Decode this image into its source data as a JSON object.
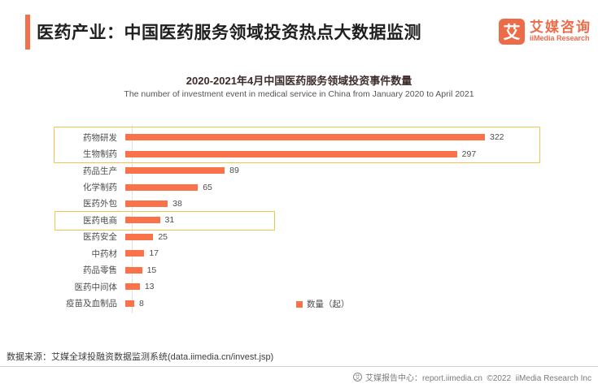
{
  "header": {
    "title": "医药产业：中国医药服务领域投资热点大数据监测",
    "logo": {
      "mark": "艾",
      "name_cn": "艾媒咨询",
      "name_en": "iiMedia Research"
    }
  },
  "chart": {
    "title": "2020-2021年4月中国医药服务领域投资事件数量",
    "subtitle": "The number of investment event in medical service in China from January 2020 to April 2021",
    "legend_label": "数量（起）"
  },
  "chart_data": {
    "type": "bar",
    "orientation": "horizontal",
    "title": "2020-2021年4月中国医药服务领域投资事件数量",
    "subtitle": "The number of investment event in medical service in China from January 2020 to April 2021",
    "categories": [
      "药物研发",
      "生物制药",
      "药品生产",
      "化学制药",
      "医药外包",
      "医药电商",
      "医药安全",
      "中药材",
      "药品零售",
      "医药中间体",
      "疫苗及血制品"
    ],
    "values": [
      322,
      297,
      89,
      65,
      38,
      31,
      25,
      17,
      15,
      13,
      8
    ],
    "xlim": [
      0,
      340
    ],
    "grid": false,
    "legend": [
      "数量（起）"
    ],
    "legend_position": "bottom-right",
    "bar_color": "#F9724A",
    "highlighted_categories": [
      "药物研发",
      "生物制药",
      "医药电商"
    ],
    "highlight_border_color": "#F3C44C"
  },
  "colors": {
    "accent_orange": "#F0714B",
    "logo_orange": "#EC6C4A",
    "bar_orange": "#F9724A",
    "highlight_gold": "#F3C44C"
  },
  "source": "数据来源：艾媒全球投融资数据监测系统(data.iimedia.cn/invest.jsp)",
  "footer": {
    "icon": "艾",
    "text": "艾媒报告中心：report.iimedia.cn  ©2022  iiMedia Research Inc"
  }
}
